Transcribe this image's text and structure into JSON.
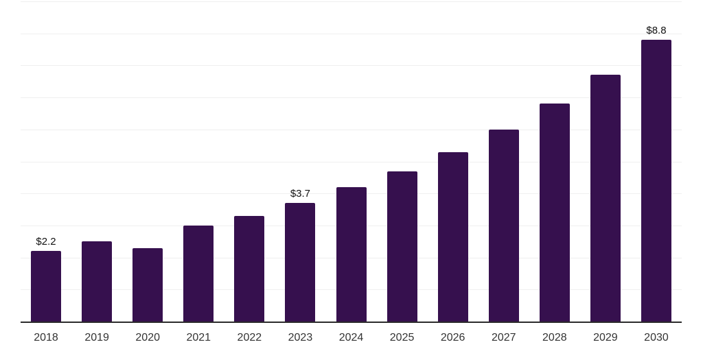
{
  "chart_data": {
    "type": "bar",
    "categories": [
      "2018",
      "2019",
      "2020",
      "2021",
      "2022",
      "2023",
      "2024",
      "2025",
      "2026",
      "2027",
      "2028",
      "2029",
      "2030"
    ],
    "values": [
      2.2,
      2.5,
      2.3,
      3.0,
      3.3,
      3.7,
      4.2,
      4.7,
      5.3,
      6.0,
      6.8,
      7.7,
      8.8
    ],
    "data_labels": [
      {
        "category": "2018",
        "text": "$2.2"
      },
      {
        "category": "2023",
        "text": "$3.7"
      },
      {
        "category": "2030",
        "text": "$8.8"
      }
    ],
    "ylim": [
      0,
      10
    ],
    "grid": {
      "horizontal": true,
      "interval": 1
    },
    "legend": "none",
    "colors": {
      "bar": "#36104e",
      "axis_line": "#2b2b2b",
      "gridline": "#efefef",
      "tick_label": "#333333",
      "data_label": "#111111"
    }
  }
}
